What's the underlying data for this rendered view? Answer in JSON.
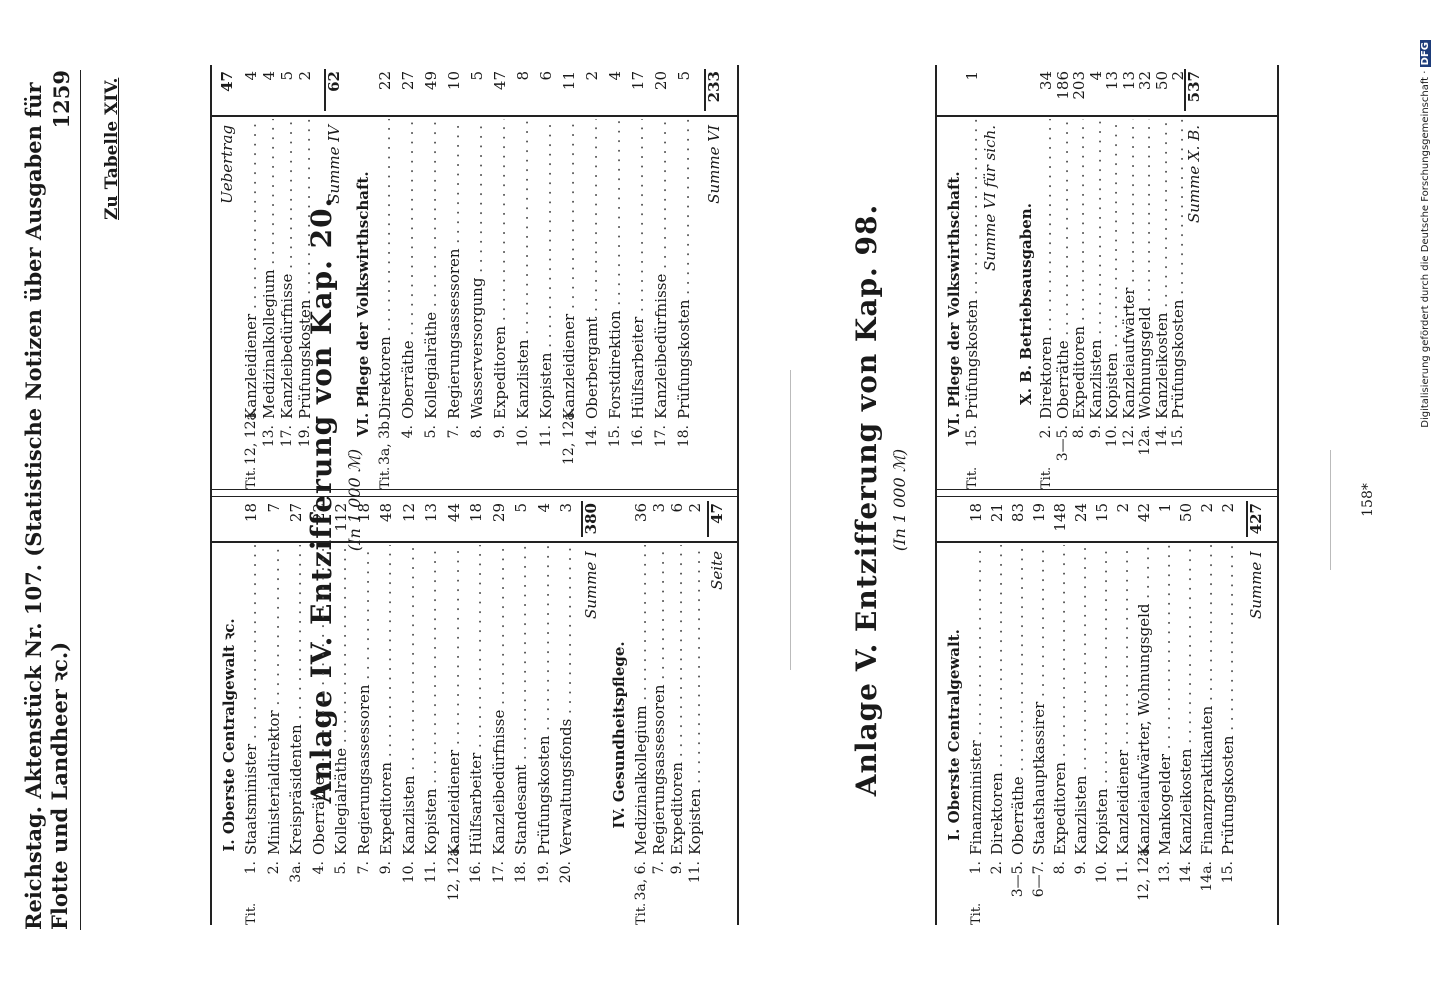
{
  "header": {
    "left": "Reichstag.   Aktenstück Nr. 107.  (Statistische Notizen über Ausgaben für Flotte und Landheer ꝛc.)",
    "page_number": "1259"
  },
  "zu_tabelle": "Zu Tabelle XIV.",
  "anlage4": {
    "title": "Anlage IV.   Entzifferung von Kap. 20.",
    "subtitle": "(In 1 000 ℳ)",
    "left": {
      "sec1": "I.  Oberste Centralgewalt ꝛc.",
      "rows": [
        {
          "tit": "Tit.",
          "num": "1.",
          "label": "Staatsminister",
          "value": "18"
        },
        {
          "tit": "",
          "num": "2.",
          "label": "Ministerialdirektor",
          "value": "7"
        },
        {
          "tit": "",
          "num": "3a.",
          "label": "Kreispräsidenten",
          "value": "27"
        },
        {
          "tit": "",
          "num": "4.",
          "label": "Oberräthe",
          "value": "22"
        },
        {
          "tit": "",
          "num": "5.",
          "label": "Kollegialräthe",
          "value": "112"
        },
        {
          "tit": "",
          "num": "7.",
          "label": "Regierungsassessoren",
          "value": "18"
        },
        {
          "tit": "",
          "num": "9.",
          "label": "Expeditoren",
          "value": "48"
        },
        {
          "tit": "",
          "num": "10.",
          "label": "Kanzlisten",
          "value": "12"
        },
        {
          "tit": "",
          "num": "11.",
          "label": "Kopisten",
          "value": "13"
        },
        {
          "tit": "",
          "num": "12, 12a.",
          "label": "Kanzleidiener",
          "value": "44"
        },
        {
          "tit": "",
          "num": "16.",
          "label": "Hülfsarbeiter",
          "value": "18"
        },
        {
          "tit": "",
          "num": "17.",
          "label": "Kanzleibedürfnisse",
          "value": "29"
        },
        {
          "tit": "",
          "num": "18.",
          "label": "Standesamt",
          "value": "5"
        },
        {
          "tit": "",
          "num": "19.",
          "label": "Prüfungskosten",
          "value": "4"
        },
        {
          "tit": "",
          "num": "20.",
          "label": "Verwaltungsfonds",
          "value": "3"
        }
      ],
      "sum1_label": "Summe I",
      "sum1": "380",
      "sec4": "IV.  Gesundheitspflege.",
      "rows4": [
        {
          "tit": "Tit.",
          "num": "3a, 6.",
          "label": "Medizinalkollegium",
          "value": "36"
        },
        {
          "tit": "",
          "num": "7.",
          "label": "Regierungsassessoren",
          "value": "3"
        },
        {
          "tit": "",
          "num": "9.",
          "label": "Expeditoren",
          "value": "6"
        },
        {
          "tit": "",
          "num": "11.",
          "label": "Kopisten",
          "value": "2"
        }
      ],
      "seite_label": "Seite",
      "seite": "47"
    },
    "right": {
      "uebertrag_label": "Uebertrag",
      "uebertrag": "47",
      "rows": [
        {
          "tit": "Tit.",
          "num": "12, 12a.",
          "label": "Kanzleidiener",
          "value": "4"
        },
        {
          "tit": "",
          "num": "13.",
          "label": "Medizinalkollegium",
          "value": "4"
        },
        {
          "tit": "",
          "num": "17.",
          "label": "Kanzleibedürfnisse",
          "value": "5"
        },
        {
          "tit": "",
          "num": "19.",
          "label": "Prüfungskosten",
          "value": "2"
        }
      ],
      "sum4_label": "Summe IV",
      "sum4": "62",
      "sec6": "VI.  Pflege der Volkswirthschaft.",
      "rows6": [
        {
          "tit": "Tit.",
          "num": "3a, 3b.",
          "label": "Direktoren",
          "value": "22"
        },
        {
          "tit": "",
          "num": "4.",
          "label": "Oberräthe",
          "value": "27"
        },
        {
          "tit": "",
          "num": "5.",
          "label": "Kollegialräthe",
          "value": "49"
        },
        {
          "tit": "",
          "num": "7.",
          "label": "Regierungsassessoren",
          "value": "10"
        },
        {
          "tit": "",
          "num": "8.",
          "label": "Wasserversorgung",
          "value": "5"
        },
        {
          "tit": "",
          "num": "9.",
          "label": "Expeditoren",
          "value": "47"
        },
        {
          "tit": "",
          "num": "10.",
          "label": "Kanzlisten",
          "value": "8"
        },
        {
          "tit": "",
          "num": "11.",
          "label": "Kopisten",
          "value": "6"
        },
        {
          "tit": "",
          "num": "12, 12a.",
          "label": "Kanzleidiener",
          "value": "11"
        },
        {
          "tit": "",
          "num": "14.",
          "label": "Oberbergamt",
          "value": "2"
        },
        {
          "tit": "",
          "num": "15.",
          "label": "Forstdirektion",
          "value": "4"
        },
        {
          "tit": "",
          "num": "16.",
          "label": "Hülfsarbeiter",
          "value": "17"
        },
        {
          "tit": "",
          "num": "17.",
          "label": "Kanzleibedürfnisse",
          "value": "20"
        },
        {
          "tit": "",
          "num": "18.",
          "label": "Prüfungskosten",
          "value": "5"
        }
      ],
      "sum6_label": "Summe VI",
      "sum6": "233"
    }
  },
  "anlage5": {
    "title": "Anlage V.   Entzifferung von Kap. 98.",
    "subtitle": "(In 1 000 ℳ)",
    "left": {
      "sec1": "I.  Oberste Centralgewalt.",
      "rows": [
        {
          "tit": "Tit.",
          "num": "1.",
          "label": "Finanzminister",
          "value": "18"
        },
        {
          "tit": "",
          "num": "2.",
          "label": "Direktoren",
          "value": "21"
        },
        {
          "tit": "",
          "num": "3—5.",
          "label": "Oberräthe",
          "value": "83"
        },
        {
          "tit": "",
          "num": "6—7.",
          "label": "Staatshauptkassirer",
          "value": "19"
        },
        {
          "tit": "",
          "num": "8.",
          "label": "Expeditoren",
          "value": "148"
        },
        {
          "tit": "",
          "num": "9.",
          "label": "Kanzlisten",
          "value": "24"
        },
        {
          "tit": "",
          "num": "10.",
          "label": "Kopisten",
          "value": "15"
        },
        {
          "tit": "",
          "num": "11.",
          "label": "Kanzleidiener",
          "value": "2"
        },
        {
          "tit": "",
          "num": "12, 12a.",
          "label": "Kanzleiaufwärter, Wohnungsgeld",
          "value": "42"
        },
        {
          "tit": "",
          "num": "13.",
          "label": "Mankogelder",
          "value": "1"
        },
        {
          "tit": "",
          "num": "14.",
          "label": "Kanzleikosten",
          "value": "50"
        },
        {
          "tit": "",
          "num": "14a.",
          "label": "Finanzpraktikanten",
          "value": "2"
        },
        {
          "tit": "",
          "num": "15.",
          "label": "Prüfungskosten",
          "value": "2"
        }
      ],
      "sum1_label": "Summe I",
      "sum1": "427"
    },
    "right": {
      "sec6": "VI.  Pflege der Volkswirthschaft.",
      "rows6": [
        {
          "tit": "Tit.",
          "num": "15.",
          "label": "Prüfungskosten",
          "value": "1"
        }
      ],
      "sum6_label": "Summe VI für sich.",
      "secXB": "X. B.  Betriebsausgaben.",
      "rowsXB": [
        {
          "tit": "Tit.",
          "num": "2.",
          "label": "Direktoren",
          "value": "34"
        },
        {
          "tit": "",
          "num": "3—5.",
          "label": "Oberräthe",
          "value": "186"
        },
        {
          "tit": "",
          "num": "8.",
          "label": "Expeditoren",
          "value": "203"
        },
        {
          "tit": "",
          "num": "9.",
          "label": "Kanzlisten",
          "value": "4"
        },
        {
          "tit": "",
          "num": "10.",
          "label": "Kopisten",
          "value": "13"
        },
        {
          "tit": "",
          "num": "12.",
          "label": "Kanzleiaufwärter",
          "value": "13"
        },
        {
          "tit": "",
          "num": "12a.",
          "label": "Wohnungsgeld",
          "value": "32"
        },
        {
          "tit": "",
          "num": "14.",
          "label": "Kanzleikosten",
          "value": "50"
        },
        {
          "tit": "",
          "num": "15.",
          "label": "Prüfungskosten",
          "value": "2"
        }
      ],
      "sumXB_label": "Summe X. B.",
      "sumXB": "537"
    }
  },
  "footer": "158*",
  "digitization": "Digitalisierung gefördert durch die Deutsche Forschungsgemeinschaft ·",
  "dfg_logo": "DFG"
}
